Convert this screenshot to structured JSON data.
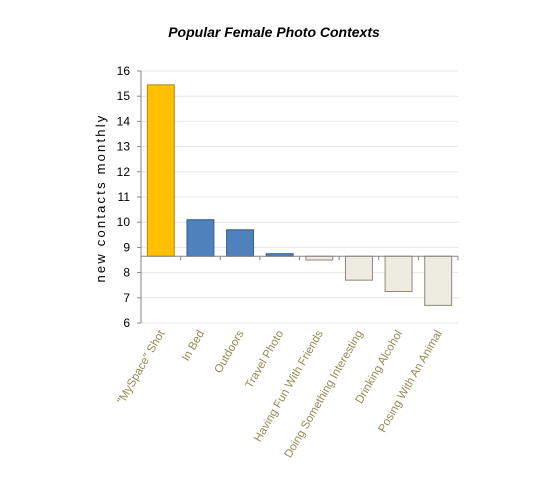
{
  "chart_data": {
    "type": "bar",
    "title": "Popular Female Photo Contexts",
    "xlabel": "",
    "ylabel": "new contacts monthly",
    "ylim": [
      6,
      16
    ],
    "yticks": [
      6,
      7,
      8,
      9,
      10,
      11,
      12,
      13,
      14,
      15,
      16
    ],
    "baseline": 8.65,
    "grid": true,
    "categories": [
      "\"MySpace\" Shot",
      "In Bed",
      "Outdoors",
      "Travel Photo",
      "Having Fun With Friends",
      "Doing Something Interesting",
      "Drinking Alcohol",
      "Posing With An Animal"
    ],
    "values": [
      15.45,
      10.1,
      9.7,
      8.75,
      8.5,
      7.7,
      7.25,
      6.7
    ],
    "bar_colors": [
      "#FFC000",
      "#4F81BD",
      "#4F81BD",
      "#4F81BD",
      "#EEECE1",
      "#EEECE1",
      "#EEECE1",
      "#EEECE1"
    ],
    "bar_edge_colors": [
      "#B8860B",
      "#385D8A",
      "#385D8A",
      "#385D8A",
      "#8C8A74",
      "#8C8A74",
      "#8C8A74",
      "#8C8A74"
    ],
    "tick_label_color": "#948A54",
    "legend": "none"
  }
}
